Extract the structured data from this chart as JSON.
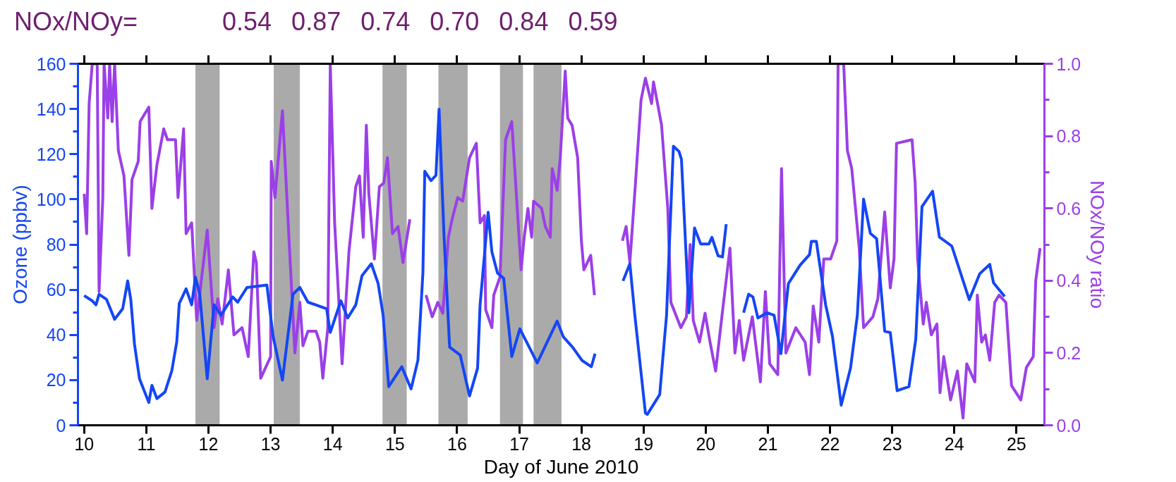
{
  "chart_data": {
    "type": "line",
    "xlabel": "Day of June 2010",
    "ylabel": "Ozone (ppbv)",
    "y2label": "NOx/NOy ratio",
    "annotations": [
      "NOx/NOy=",
      "0.54",
      "0.87",
      "0.74",
      "0.70",
      "0.84",
      "0.59"
    ],
    "xlim": [
      9.9,
      25.45
    ],
    "xticks": [
      10,
      11,
      12,
      13,
      14,
      15,
      16,
      17,
      18,
      19,
      20,
      21,
      22,
      23,
      24,
      25
    ],
    "ylim": [
      0,
      160
    ],
    "yticks": [
      0,
      {
        "value": 10,
        "label": null
      },
      20,
      {
        "value": 30,
        "label": null
      },
      40,
      {
        "value": 50,
        "label": null
      },
      60,
      {
        "value": 70,
        "label": null
      },
      80,
      {
        "value": 90,
        "label": null
      },
      100,
      {
        "value": 110,
        "label": null
      },
      120,
      {
        "value": 130,
        "label": null
      },
      140,
      {
        "value": 150,
        "label": null
      },
      160
    ],
    "y2lim": [
      0,
      1
    ],
    "y2ticks": [
      {
        "value": 0,
        "label": "0.0"
      },
      {
        "value": 0.1,
        "label": null
      },
      {
        "value": 0.2,
        "label": "0.2"
      },
      {
        "value": 0.3,
        "label": null
      },
      {
        "value": 0.4,
        "label": "0.4"
      },
      {
        "value": 0.5,
        "label": null
      },
      {
        "value": 0.6,
        "label": "0.6"
      },
      {
        "value": 0.7,
        "label": null
      },
      {
        "value": 0.8,
        "label": "0.8"
      },
      {
        "value": 0.9,
        "label": null
      },
      {
        "value": 1,
        "label": "1.0"
      }
    ],
    "grid": false,
    "marker": "none",
    "line_style": "solid",
    "bands": [
      {
        "axis": "x",
        "from": 11.79,
        "to": 12.18,
        "color": "#aaaaaa"
      },
      {
        "axis": "x",
        "from": 13.05,
        "to": 13.47,
        "color": "#aaaaaa"
      },
      {
        "axis": "x",
        "from": 14.8,
        "to": 15.19,
        "color": "#aaaaaa"
      },
      {
        "axis": "x",
        "from": 15.7,
        "to": 16.17,
        "color": "#aaaaaa"
      },
      {
        "axis": "x",
        "from": 16.69,
        "to": 17.06,
        "color": "#aaaaaa"
      },
      {
        "axis": "x",
        "from": 17.23,
        "to": 17.68,
        "color": "#aaaaaa"
      }
    ],
    "series": [
      {
        "color": "#9b3fe8",
        "axis": "y2",
        "x": [
          10.0,
          10.04,
          10.08,
          10.13,
          10.21,
          10.24,
          10.3,
          10.32,
          10.38,
          10.41,
          10.45,
          10.49,
          10.55,
          10.64,
          10.72,
          10.77,
          10.87,
          10.9,
          11.04,
          11.09,
          11.17,
          11.28,
          11.34,
          11.47,
          11.51,
          11.6,
          11.64,
          11.73,
          11.81,
          11.98,
          12.09,
          12.15,
          12.22,
          12.32,
          12.41,
          12.54,
          12.64,
          12.73,
          12.77,
          12.84,
          13.0,
          13.01,
          13.07,
          13.19,
          13.39,
          13.47,
          13.52,
          13.6,
          13.73,
          13.79,
          13.84,
          13.92,
          13.96,
          14.03,
          14.15,
          14.26,
          14.37,
          14.43,
          14.49,
          14.54,
          14.58,
          14.67,
          14.75,
          14.82,
          14.88,
          14.96,
          15.05,
          15.13,
          15.24,
          15.37,
          15.5,
          15.6,
          15.69,
          15.77,
          15.86,
          15.92,
          16.01,
          16.09,
          16.2,
          16.31,
          16.37,
          16.44,
          16.46,
          16.56,
          16.59,
          16.69,
          16.78,
          16.88,
          17.03,
          17.08,
          17.14,
          17.2,
          17.23,
          17.36,
          17.42,
          17.5,
          17.53,
          17.61,
          17.66,
          17.74,
          17.78,
          17.85,
          17.94,
          18.0,
          18.04,
          18.15,
          18.21,
          18.45,
          18.66,
          18.72,
          18.78,
          18.87,
          18.96,
          19.03,
          19.13,
          19.16,
          19.29,
          19.39,
          19.44,
          19.6,
          19.69,
          19.75,
          19.8,
          19.9,
          19.99,
          20.07,
          20.16,
          20.26,
          20.39,
          20.47,
          20.54,
          20.61,
          20.75,
          20.88,
          20.96,
          21.03,
          21.16,
          21.22,
          21.29,
          21.45,
          21.6,
          21.67,
          21.73,
          21.82,
          21.9,
          22.01,
          22.11,
          22.13,
          22.22,
          22.28,
          22.35,
          22.47,
          22.54,
          22.69,
          22.77,
          22.88,
          22.97,
          23.03,
          23.07,
          23.32,
          23.37,
          23.41,
          23.46,
          23.5,
          23.55,
          23.63,
          23.72,
          23.77,
          23.83,
          23.94,
          24.05,
          24.14,
          24.2,
          24.33,
          24.37,
          24.44,
          24.5,
          24.57,
          24.65,
          24.72,
          24.83,
          24.92,
          25.07,
          25.16,
          25.27,
          25.31,
          25.38
        ],
        "values": [
          0.64,
          0.53,
          0.89,
          1.0,
          1.0,
          0.37,
          0.63,
          1.0,
          0.85,
          1.0,
          0.84,
          1.0,
          0.76,
          0.69,
          0.47,
          0.68,
          0.73,
          0.84,
          0.88,
          0.6,
          0.72,
          0.82,
          0.79,
          0.79,
          0.63,
          0.82,
          0.53,
          0.56,
          0.29,
          0.54,
          0.27,
          0.35,
          0.28,
          0.43,
          0.25,
          0.27,
          0.19,
          0.48,
          0.45,
          0.13,
          0.19,
          0.73,
          0.63,
          0.87,
          0.2,
          0.34,
          0.22,
          0.26,
          0.26,
          0.23,
          0.13,
          0.27,
          1.0,
          0.56,
          0.17,
          0.48,
          0.66,
          0.69,
          0.52,
          0.83,
          0.64,
          0.46,
          0.66,
          0.67,
          0.74,
          0.53,
          0.55,
          0.45,
          0.57,
          null,
          0.36,
          0.3,
          0.34,
          0.31,
          0.52,
          0.57,
          0.63,
          0.62,
          0.74,
          0.78,
          0.56,
          0.58,
          0.32,
          0.27,
          0.36,
          0.41,
          0.79,
          0.84,
          0.43,
          0.52,
          0.6,
          0.52,
          0.62,
          0.6,
          0.55,
          0.52,
          0.71,
          0.65,
          0.74,
          0.98,
          0.85,
          0.83,
          0.74,
          0.51,
          0.43,
          0.47,
          0.36,
          null,
          0.51,
          0.55,
          0.45,
          0.67,
          0.9,
          0.96,
          0.89,
          0.95,
          0.83,
          0.6,
          0.34,
          0.27,
          0.3,
          0.5,
          0.29,
          0.23,
          0.31,
          0.23,
          0.15,
          0.3,
          0.49,
          0.2,
          0.29,
          0.18,
          0.3,
          0.12,
          0.37,
          0.17,
          0.14,
          0.71,
          0.2,
          0.27,
          0.23,
          0.14,
          0.33,
          0.23,
          0.46,
          0.46,
          0.51,
          1.0,
          1.0,
          0.76,
          0.71,
          0.49,
          0.27,
          0.3,
          0.35,
          0.59,
          0.38,
          0.46,
          0.78,
          0.79,
          0.67,
          0.46,
          0.36,
          0.28,
          0.34,
          0.25,
          0.28,
          0.09,
          0.19,
          0.07,
          0.15,
          0.02,
          0.17,
          0.12,
          0.36,
          0.23,
          0.25,
          0.18,
          0.34,
          0.36,
          0.34,
          0.11,
          0.07,
          0.16,
          0.19,
          0.4,
          0.49
        ]
      },
      {
        "color": "#1446f5",
        "x": [
          10.0,
          10.13,
          10.19,
          10.24,
          10.36,
          10.49,
          10.62,
          10.7,
          10.75,
          10.81,
          10.89,
          11.04,
          11.09,
          11.17,
          11.3,
          11.41,
          11.49,
          11.53,
          11.64,
          11.73,
          11.79,
          11.86,
          11.98,
          12.09,
          12.2,
          12.39,
          12.47,
          12.62,
          12.94,
          13.04,
          13.19,
          13.36,
          13.47,
          13.6,
          13.9,
          13.96,
          14.13,
          14.24,
          14.37,
          14.47,
          14.62,
          14.73,
          14.81,
          14.9,
          15.11,
          15.26,
          15.37,
          15.45,
          15.48,
          15.58,
          15.66,
          15.71,
          15.79,
          15.88,
          16.05,
          16.2,
          16.33,
          16.37,
          16.5,
          16.56,
          16.65,
          16.75,
          16.88,
          17.01,
          17.29,
          17.61,
          17.71,
          17.86,
          18.01,
          18.16,
          18.22,
          18.45,
          18.67,
          18.78,
          18.86,
          19.03,
          19.06,
          19.26,
          19.37,
          19.48,
          19.57,
          19.61,
          19.73,
          19.82,
          19.92,
          20.05,
          20.1,
          20.2,
          20.27,
          20.33,
          20.47,
          20.61,
          20.69,
          20.76,
          20.84,
          20.99,
          21.1,
          21.21,
          21.33,
          21.52,
          21.67,
          21.7,
          21.78,
          21.93,
          22.04,
          22.18,
          22.33,
          22.44,
          22.54,
          22.65,
          22.75,
          22.88,
          22.97,
          23.08,
          23.27,
          23.38,
          23.48,
          23.65,
          23.76,
          23.96,
          24.24,
          24.41,
          24.57,
          24.63,
          24.81
        ],
        "values": [
          57.4,
          55.1,
          53.3,
          58,
          55.7,
          46.9,
          51.6,
          63.9,
          55.7,
          35.8,
          20.6,
          10.1,
          17.7,
          11.8,
          14.7,
          24.1,
          37,
          53.9,
          60.4,
          53.3,
          65.6,
          58,
          20.6,
          53.3,
          48.7,
          56.8,
          54.5,
          61,
          62.1,
          39.3,
          20,
          58,
          61,
          54.5,
          51.6,
          41.1,
          55.1,
          47.5,
          53.3,
          66.2,
          71.5,
          62.7,
          48.7,
          17.1,
          25.9,
          16.1,
          28.8,
          67.4,
          112.4,
          108.3,
          110.6,
          139.9,
          83.8,
          34.6,
          31.1,
          13,
          25.3,
          53.3,
          94.3,
          76.7,
          67.4,
          65,
          30.4,
          42.7,
          27.6,
          46.1,
          39.1,
          34.5,
          28.7,
          25.9,
          31.7,
          null,
          63.9,
          71.5,
          48.7,
          5.4,
          4.8,
          13.6,
          48.7,
          123.5,
          121.2,
          117.7,
          49.8,
          87.3,
          80.2,
          80.2,
          83.2,
          75,
          74.5,
          89,
          null,
          49.8,
          58,
          56.8,
          47.5,
          49.8,
          48.7,
          31.7,
          62.7,
          70.9,
          75.5,
          81.4,
          81.4,
          53.3,
          39.3,
          8.9,
          25.3,
          48.7,
          100.1,
          84.9,
          82.6,
          41.6,
          41,
          15.3,
          17.1,
          38.1,
          96.8,
          103.6,
          83.3,
          79.3,
          55.6,
          67.1,
          71.2,
          63.1,
          57
        ]
      }
    ]
  }
}
